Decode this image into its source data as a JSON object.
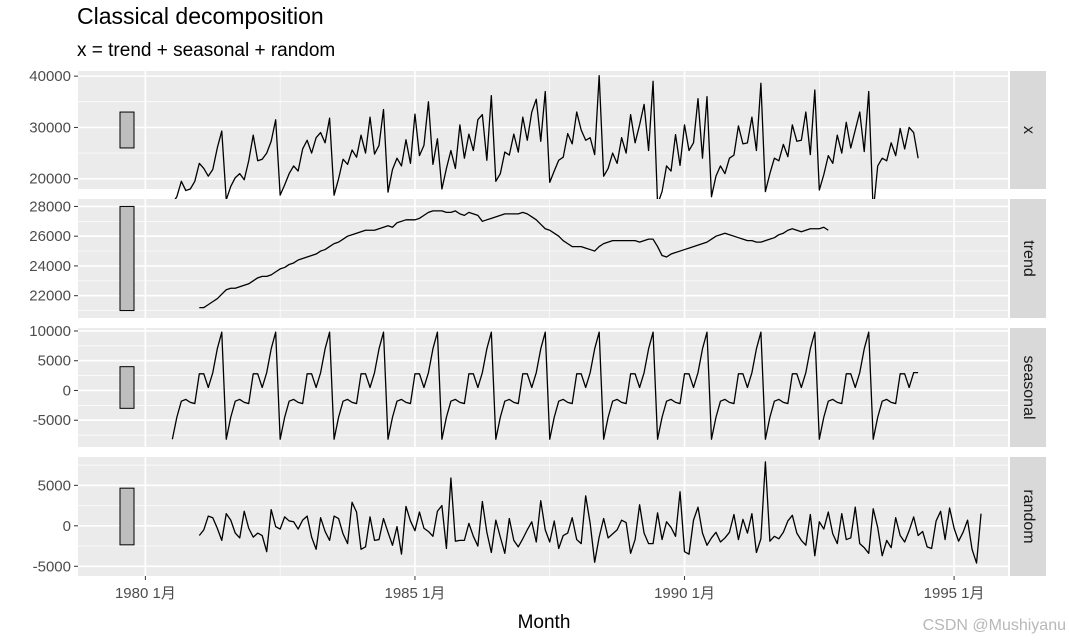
{
  "chart_data": {
    "type": "line",
    "title": "Classical decomposition",
    "subtitle": "x = trend + seasonal + random",
    "xlabel": "Month",
    "x_start": "1980 Jul",
    "frequency": "monthly",
    "xticks": [
      {
        "value": 1980,
        "label": "1980 1月"
      },
      {
        "value": 1985,
        "label": "1985 1月"
      },
      {
        "value": 1990,
        "label": "1990 1月"
      },
      {
        "value": 1995,
        "label": "1995 1月"
      }
    ],
    "xlim": [
      1978.75,
      1996.0
    ],
    "panels": [
      {
        "name": "x",
        "ylim": [
          18000,
          41000
        ],
        "yticks": [
          20000,
          30000,
          40000
        ],
        "ytick_labels": [
          "20000",
          "30000",
          "40000"
        ],
        "values": [
          15200,
          16500,
          19500,
          17700,
          18000,
          19500,
          23000,
          22000,
          20500,
          21800,
          26000,
          29300,
          15900,
          18500,
          20200,
          21000,
          19800,
          23500,
          28500,
          23500,
          23800,
          25000,
          27300,
          31500,
          16800,
          18800,
          21000,
          22500,
          21500,
          25800,
          27500,
          25000,
          28000,
          29000,
          27000,
          31800,
          16800,
          20000,
          23800,
          22800,
          25600,
          24200,
          28500,
          25000,
          32000,
          24800,
          26500,
          33500,
          17400,
          21800,
          24000,
          22500,
          27600,
          23000,
          32600,
          24500,
          26500,
          35000,
          22800,
          27800,
          18000,
          22000,
          25500,
          22000,
          30500,
          24000,
          28700,
          25500,
          31500,
          32500,
          23600,
          36200,
          19500,
          21000,
          25200,
          24600,
          28700,
          25200,
          32000,
          27500,
          33000,
          35500,
          27300,
          37000,
          19300,
          21500,
          23600,
          24200,
          28800,
          26800,
          33000,
          29500,
          27500,
          28000,
          24700,
          40100,
          20500,
          22000,
          25000,
          23000,
          28000,
          25000,
          32500,
          27000,
          30500,
          34500,
          25500,
          39000,
          15000,
          17500,
          22500,
          21500,
          28600,
          22600,
          30500,
          25500,
          27000,
          35600,
          24000,
          36000,
          16500,
          20500,
          22500,
          21000,
          24000,
          24600,
          30300,
          26800,
          27000,
          32000,
          25500,
          38600,
          17500,
          21000,
          24000,
          23500,
          26700,
          24300,
          30500,
          27300,
          27500,
          33000,
          24700,
          37300,
          17800,
          20800,
          24500,
          23000,
          28500,
          25000,
          31000,
          26000,
          29500,
          33000,
          25300,
          37000,
          13500,
          22500,
          24000,
          23500,
          27000,
          24500,
          29800,
          25800,
          30000,
          29000,
          24000
        ],
        "strip_label": "x"
      },
      {
        "name": "trend",
        "ylim": [
          20500,
          28500
        ],
        "yticks": [
          22000,
          24000,
          26000,
          28000
        ],
        "ytick_labels": [
          "22000",
          "24000",
          "26000",
          "28000"
        ],
        "values": [
          null,
          null,
          null,
          null,
          null,
          null,
          21200,
          21200,
          21400,
          21600,
          21800,
          22100,
          22400,
          22500,
          22500,
          22600,
          22700,
          22800,
          23000,
          23200,
          23300,
          23300,
          23400,
          23600,
          23800,
          23900,
          24100,
          24200,
          24400,
          24500,
          24600,
          24700,
          24800,
          25000,
          25100,
          25300,
          25500,
          25600,
          25800,
          26000,
          26100,
          26200,
          26300,
          26400,
          26400,
          26400,
          26500,
          26600,
          26700,
          26600,
          26900,
          27000,
          27100,
          27100,
          27100,
          27200,
          27400,
          27600,
          27700,
          27700,
          27700,
          27600,
          27600,
          27700,
          27500,
          27400,
          27600,
          27500,
          27400,
          27000,
          27100,
          27200,
          27300,
          27400,
          27500,
          27500,
          27500,
          27500,
          27600,
          27500,
          27300,
          27100,
          26800,
          26500,
          26400,
          26200,
          26000,
          25700,
          25500,
          25300,
          25300,
          25300,
          25200,
          25100,
          25000,
          25300,
          25500,
          25600,
          25700,
          25700,
          25700,
          25700,
          25700,
          25700,
          25600,
          25700,
          25800,
          25800,
          25300,
          24700,
          24600,
          24800,
          24900,
          25000,
          25100,
          25200,
          25300,
          25400,
          25500,
          25600,
          25800,
          26000,
          26100,
          26200,
          26100,
          26000,
          25900,
          25800,
          25700,
          25700,
          25600,
          25600,
          25700,
          25800,
          25900,
          26100,
          26200,
          26400,
          26500,
          26400,
          26300,
          26400,
          26500,
          26500,
          26500,
          26600,
          26400,
          null,
          null,
          null,
          null,
          null,
          null
        ],
        "strip_label": "trend"
      },
      {
        "name": "seasonal",
        "ylim": [
          -9500,
          10500
        ],
        "yticks": [
          -5000,
          0,
          5000,
          10000
        ],
        "ytick_labels": [
          "-5000",
          "0",
          "5000",
          "10000"
        ],
        "values": [
          -8200,
          -4500,
          -1800,
          -1500,
          -2000,
          -2200,
          2800,
          2800,
          500,
          3000,
          7000,
          9800,
          -8200,
          -4500,
          -1800,
          -1500,
          -2000,
          -2200,
          2800,
          2800,
          500,
          3000,
          7000,
          9800,
          -8200,
          -4500,
          -1800,
          -1500,
          -2000,
          -2200,
          2800,
          2800,
          500,
          3000,
          7000,
          9800,
          -8200,
          -4500,
          -1800,
          -1500,
          -2000,
          -2200,
          2800,
          2800,
          500,
          3000,
          7000,
          9800,
          -8200,
          -4500,
          -1800,
          -1500,
          -2000,
          -2200,
          2800,
          2800,
          500,
          3000,
          7000,
          9800,
          -8200,
          -4500,
          -1800,
          -1500,
          -2000,
          -2200,
          2800,
          2800,
          500,
          3000,
          7000,
          9800,
          -8200,
          -4500,
          -1800,
          -1500,
          -2000,
          -2200,
          2800,
          2800,
          500,
          3000,
          7000,
          9800,
          -8200,
          -4500,
          -1800,
          -1500,
          -2000,
          -2200,
          2800,
          2800,
          500,
          3000,
          7000,
          9800,
          -8200,
          -4500,
          -1800,
          -1500,
          -2000,
          -2200,
          2800,
          2800,
          500,
          3000,
          7000,
          9800,
          -8200,
          -4500,
          -1800,
          -1500,
          -2000,
          -2200,
          2800,
          2800,
          500,
          3000,
          7000,
          9800,
          -8200,
          -4500,
          -1800,
          -1500,
          -2000,
          -2200,
          2800,
          2800,
          500,
          3000,
          7000,
          9800,
          -8200,
          -4500,
          -1800,
          -1500,
          -2000,
          -2200,
          2800,
          2800,
          500,
          3000,
          7000,
          9800,
          -8200,
          -4500,
          -1800,
          -1500,
          -2000,
          -2200,
          2800,
          2800,
          500,
          3000,
          7000,
          9800,
          -8200,
          -4500,
          -1800,
          -1500,
          -2000,
          -2200,
          2800,
          2800,
          500,
          3000,
          3000
        ],
        "strip_label": "seasonal"
      },
      {
        "name": "random",
        "ylim": [
          -6200,
          8500
        ],
        "yticks": [
          -5000,
          0,
          5000
        ],
        "ytick_labels": [
          "-5000",
          "0",
          "5000"
        ],
        "values": [
          null,
          null,
          null,
          null,
          null,
          null,
          -1200,
          -500,
          1200,
          1000,
          -300,
          -1800,
          1500,
          700,
          -900,
          -1500,
          1800,
          -300,
          -1400,
          -900,
          -1200,
          -3200,
          2000,
          -100,
          -400,
          1100,
          600,
          500,
          -400,
          700,
          1200,
          -1400,
          -2900,
          1000,
          -700,
          -1800,
          1200,
          900,
          -1000,
          -2200,
          2900,
          1700,
          -2900,
          -2600,
          1100,
          -1800,
          -1700,
          900,
          -800,
          -2400,
          -100,
          -3500,
          2400,
          600,
          -600,
          1700,
          -300,
          -700,
          -1300,
          1800,
          2500,
          -2800,
          5900,
          -1900,
          -1800,
          -1800,
          300,
          -1300,
          -2500,
          3000,
          -800,
          -3300,
          700,
          -1400,
          -3400,
          900,
          -1800,
          -2600,
          -1600,
          -500,
          500,
          -2000,
          3100,
          -500,
          -2000,
          600,
          -2800,
          -1200,
          -900,
          1000,
          -1700,
          -2200,
          3700,
          300,
          -4500,
          -1400,
          900,
          -1500,
          -1000,
          -500,
          700,
          400,
          -3400,
          -1700,
          2600,
          -900,
          -2200,
          -2200,
          1600,
          -1700,
          500,
          -200,
          -1300,
          4200,
          -3200,
          -3500,
          700,
          2300,
          -900,
          -2400,
          -1500,
          -800,
          -2000,
          -1500,
          -800,
          1400,
          -1700,
          800,
          -900,
          1500,
          -3300,
          -1600,
          7900,
          -1900,
          -1300,
          -1600,
          -800,
          600,
          1300,
          -900,
          -1800,
          -2400,
          1400,
          -3700,
          500,
          -400,
          1700,
          -1000,
          -2200,
          1500,
          -1700,
          -1500,
          2300,
          -2200,
          -2700,
          -3400,
          2100,
          -200,
          -3700,
          -1800,
          -2700,
          1000,
          -1200,
          -2000,
          -600,
          1100,
          -1200,
          -700,
          -2600,
          -2800,
          600,
          1800,
          -1700,
          2200,
          -300,
          -1900,
          -800,
          700,
          -2900,
          -4600,
          1500,
          null,
          null,
          null,
          null,
          null,
          null
        ],
        "strip_label": "random"
      }
    ],
    "scale_bars": "gray boxes at left indicate a common vertical scale across panels",
    "background": "#ebebeb",
    "grid": true,
    "line_color": "#000000"
  },
  "watermark": "CSDN @Mushiyanu"
}
